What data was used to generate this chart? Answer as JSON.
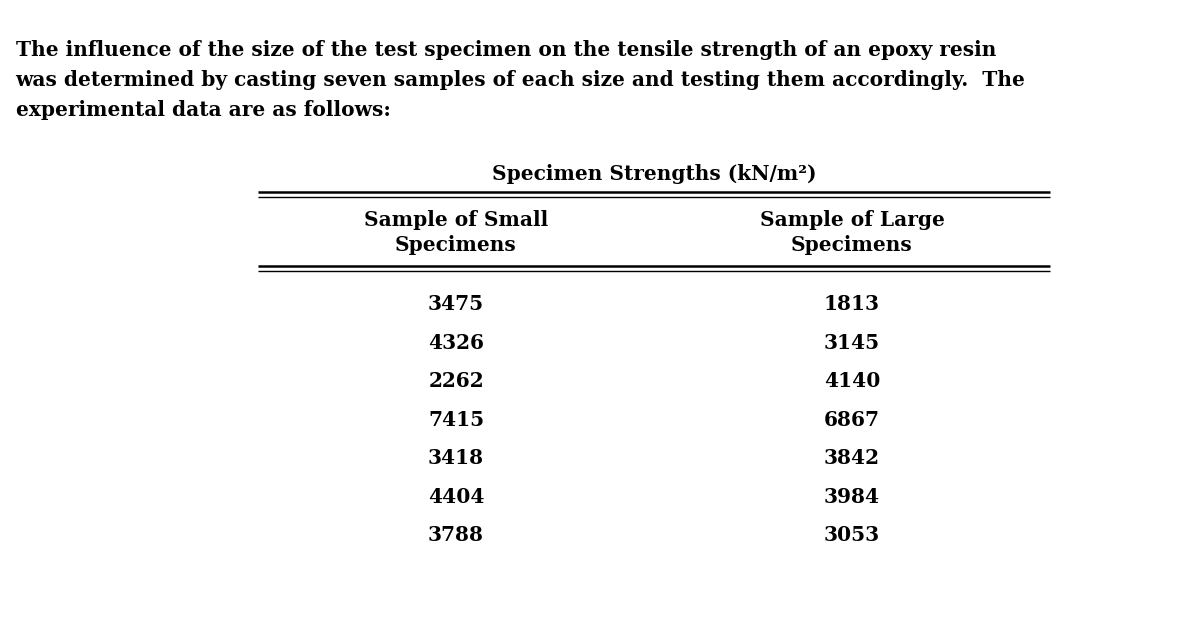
{
  "line1": "The influence of the size of the test specimen on the tensile strength of an epoxy resin",
  "line2": "was determined by casting seven samples of each size and testing them accordingly.  The",
  "line3": "experimental data are as follows:",
  "table_title": "Specimen Strengths (kN/m²)",
  "col1_header_line1": "Sample of Small",
  "col1_header_line2": "Specimens",
  "col2_header_line1": "Sample of Large",
  "col2_header_line2": "Specimens",
  "small_specimens": [
    3475,
    4326,
    2262,
    7415,
    3418,
    4404,
    3788
  ],
  "large_specimens": [
    1813,
    3145,
    4140,
    6867,
    3842,
    3984,
    3053
  ],
  "bg_color": "#ffffff",
  "text_color": "#000000",
  "paragraph_fontsize": 14.5,
  "table_title_fontsize": 14.5,
  "header_fontsize": 14.5,
  "data_fontsize": 14.5
}
